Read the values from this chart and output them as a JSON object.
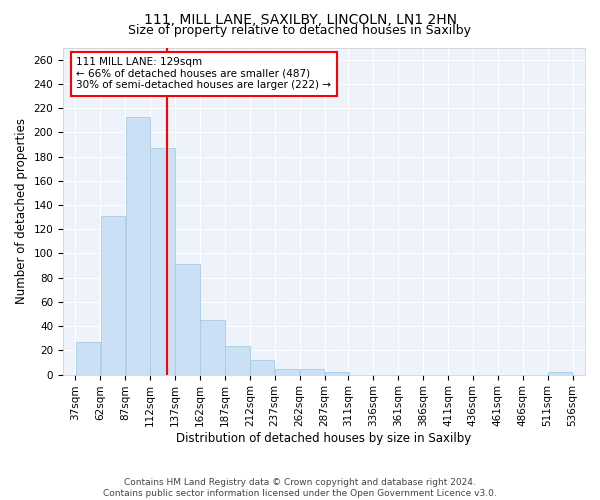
{
  "title1": "111, MILL LANE, SAXILBY, LINCOLN, LN1 2HN",
  "title2": "Size of property relative to detached houses in Saxilby",
  "xlabel": "Distribution of detached houses by size in Saxilby",
  "ylabel": "Number of detached properties",
  "bar_color": "#cce0f5",
  "bar_edgecolor": "#a8cce0",
  "vline_x": 129,
  "vline_color": "red",
  "annotation_text": "111 MILL LANE: 129sqm\n← 66% of detached houses are smaller (487)\n30% of semi-detached houses are larger (222) →",
  "annotation_box_color": "white",
  "annotation_box_edgecolor": "red",
  "bin_edges": [
    37,
    62,
    87,
    112,
    137,
    162,
    187,
    212,
    237,
    262,
    287,
    311,
    336,
    361,
    386,
    411,
    436,
    461,
    486,
    511,
    536
  ],
  "bar_heights": [
    27,
    131,
    213,
    187,
    91,
    45,
    24,
    12,
    5,
    5,
    2,
    0,
    0,
    0,
    0,
    0,
    0,
    0,
    0,
    2
  ],
  "ylim": [
    0,
    270
  ],
  "yticks": [
    0,
    20,
    40,
    60,
    80,
    100,
    120,
    140,
    160,
    180,
    200,
    220,
    240,
    260
  ],
  "background_color": "#eef2fb",
  "footer_text": "Contains HM Land Registry data © Crown copyright and database right 2024.\nContains public sector information licensed under the Open Government Licence v3.0.",
  "title1_fontsize": 10,
  "title2_fontsize": 9,
  "xlabel_fontsize": 8.5,
  "ylabel_fontsize": 8.5,
  "tick_fontsize": 7.5,
  "annotation_fontsize": 7.5,
  "footer_fontsize": 6.5
}
